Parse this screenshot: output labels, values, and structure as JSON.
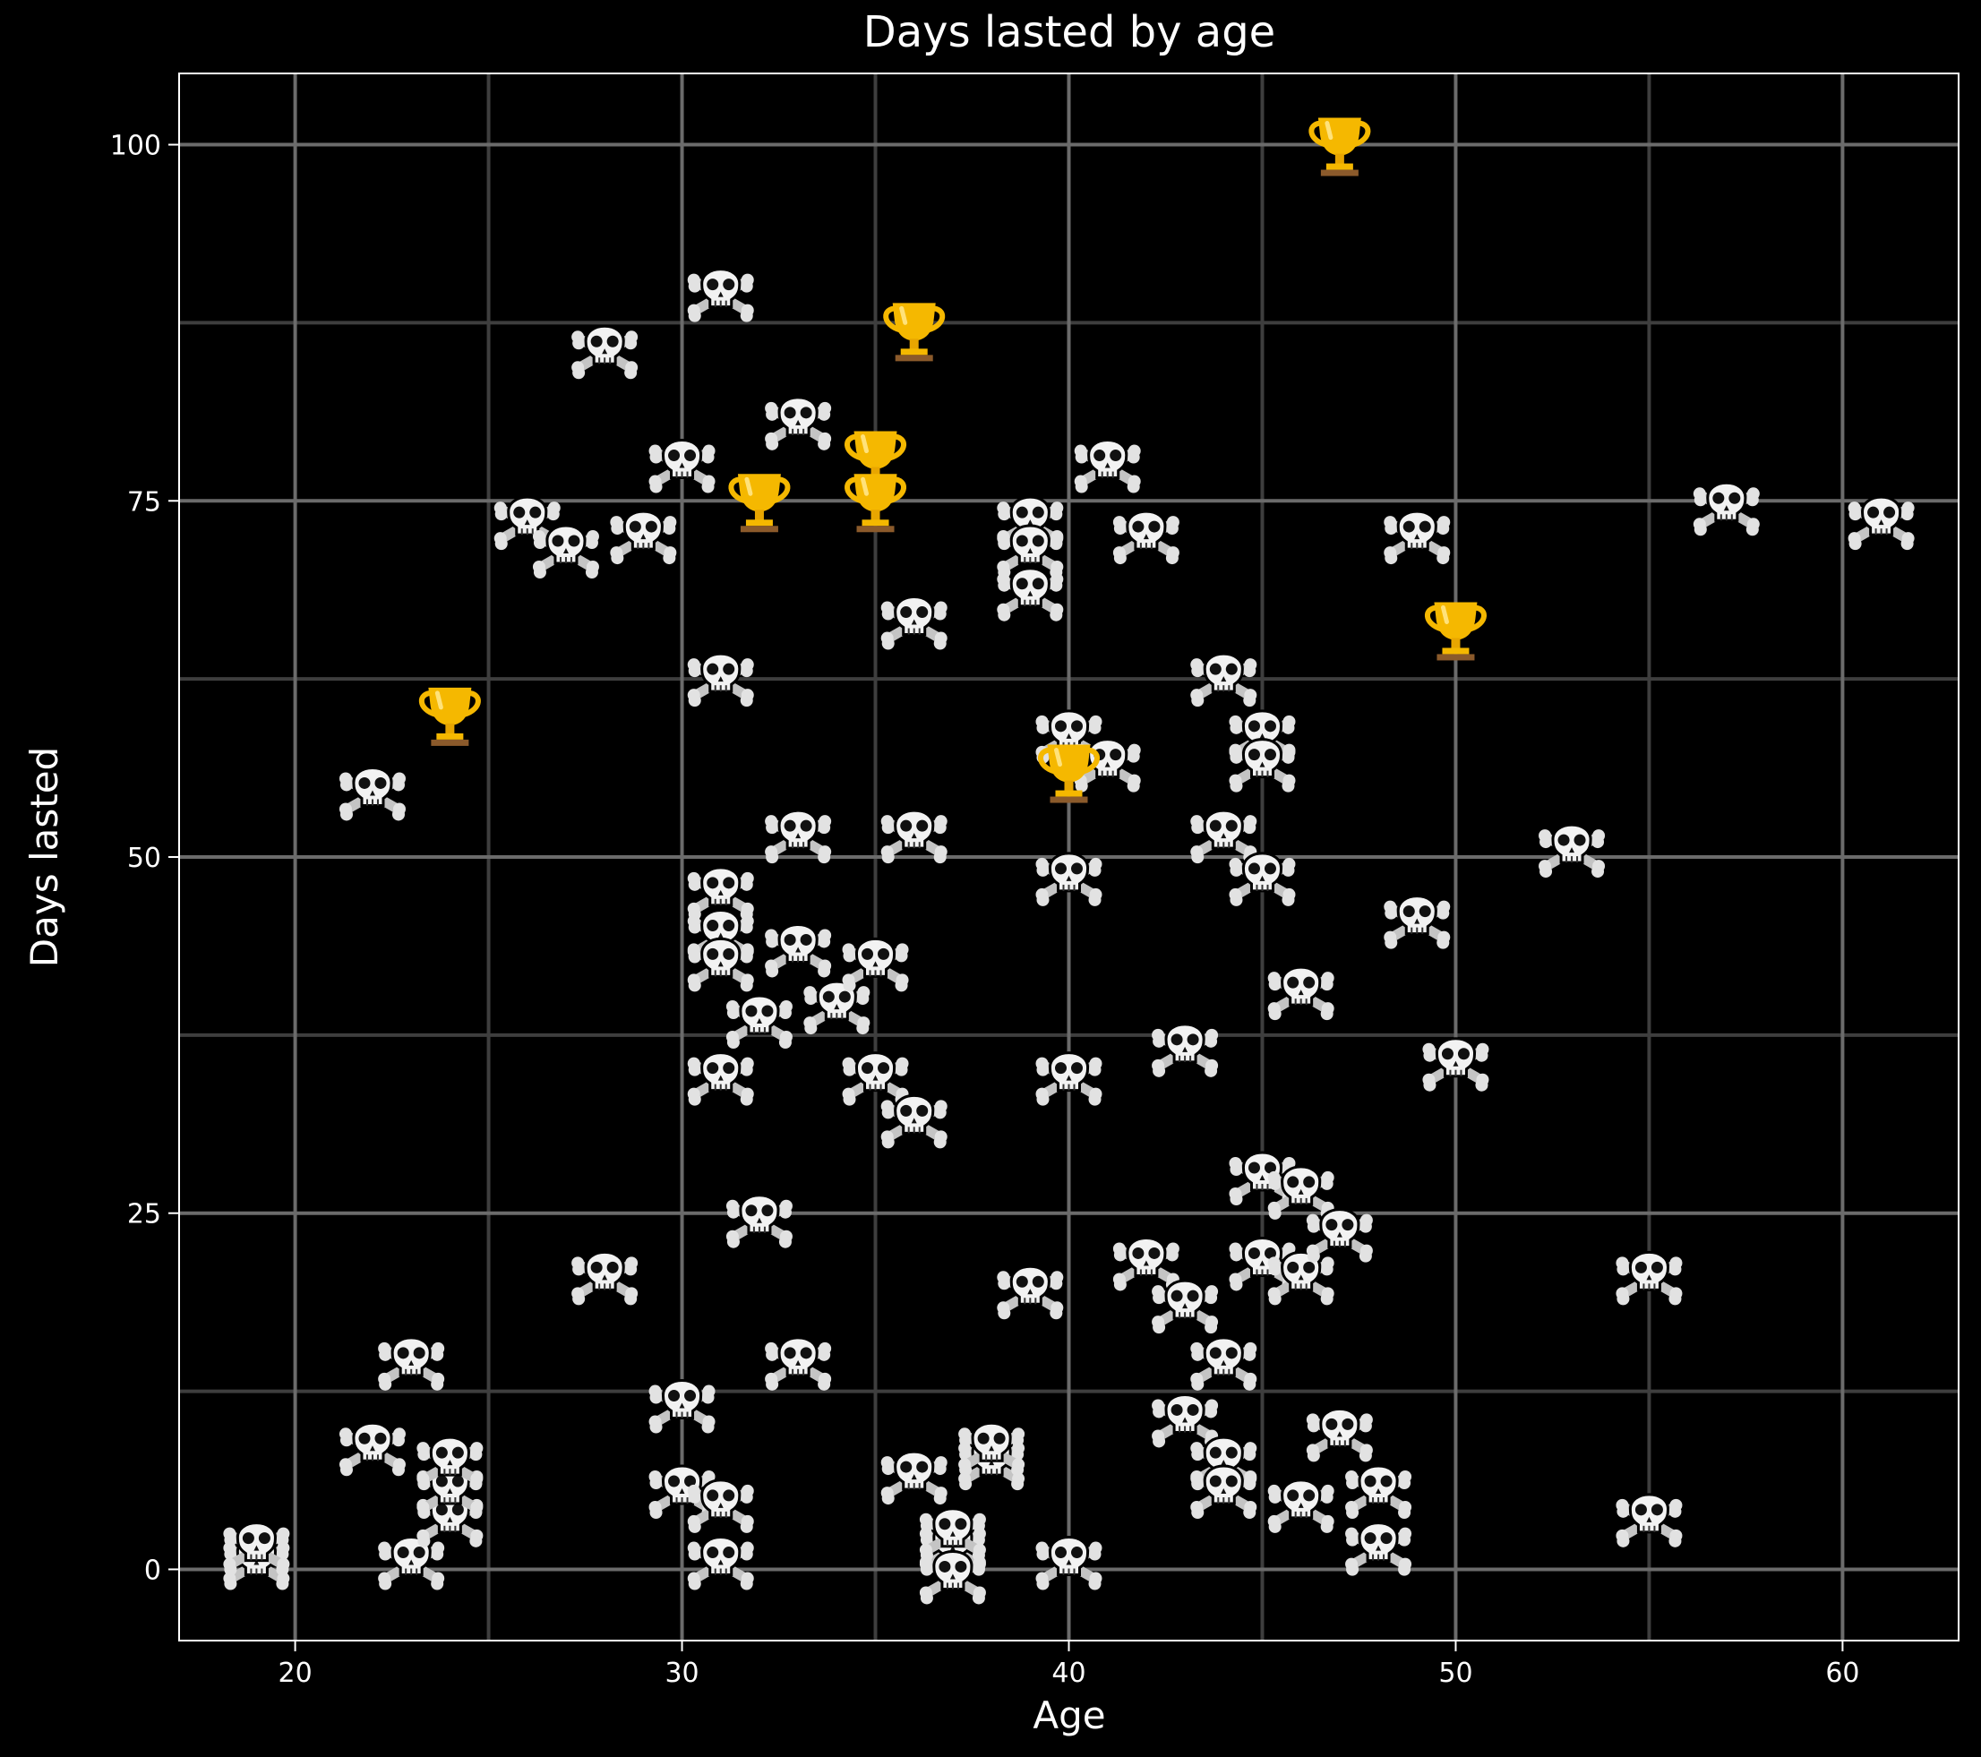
{
  "chart_data": {
    "type": "scatter",
    "title": "Days lasted by age",
    "xlabel": "Age",
    "ylabel": "Days lasted",
    "xlim": [
      17,
      63
    ],
    "ylim": [
      -5,
      105
    ],
    "xticks": [
      20,
      30,
      40,
      50,
      60
    ],
    "yticks": [
      0,
      25,
      50,
      75,
      100
    ],
    "grid": true,
    "background": "#000000",
    "colors": {
      "loser_marker": "#f2f2f2",
      "winner_marker": "#f5b800",
      "trophy_base": "#8b5a2b"
    },
    "series": [
      {
        "icon": "skull-crossbones-icon",
        "points": [
          [
            19,
            1
          ],
          [
            19,
            2
          ],
          [
            22,
            9
          ],
          [
            22,
            55
          ],
          [
            23,
            1
          ],
          [
            23,
            15
          ],
          [
            24,
            4
          ],
          [
            24,
            6
          ],
          [
            24,
            8
          ],
          [
            26,
            74
          ],
          [
            27,
            72
          ],
          [
            28,
            21
          ],
          [
            28,
            86
          ],
          [
            29,
            73
          ],
          [
            30,
            12
          ],
          [
            30,
            6
          ],
          [
            30,
            78
          ],
          [
            31,
            90
          ],
          [
            31,
            63
          ],
          [
            31,
            48
          ],
          [
            31,
            45
          ],
          [
            31,
            43
          ],
          [
            31,
            35
          ],
          [
            31,
            5
          ],
          [
            31,
            1
          ],
          [
            32,
            25
          ],
          [
            32,
            39
          ],
          [
            33,
            81
          ],
          [
            33,
            15
          ],
          [
            33,
            44
          ],
          [
            33,
            52
          ],
          [
            34,
            40
          ],
          [
            35,
            43
          ],
          [
            35,
            35
          ],
          [
            36,
            67
          ],
          [
            36,
            52
          ],
          [
            36,
            32
          ],
          [
            36,
            7
          ],
          [
            37,
            2
          ],
          [
            37,
            0
          ],
          [
            37,
            3
          ],
          [
            38,
            8
          ],
          [
            38,
            9
          ],
          [
            39,
            74
          ],
          [
            39,
            72
          ],
          [
            39,
            69
          ],
          [
            39,
            20
          ],
          [
            40,
            59
          ],
          [
            40,
            49
          ],
          [
            40,
            35
          ],
          [
            40,
            1
          ],
          [
            41,
            57
          ],
          [
            41,
            78
          ],
          [
            42,
            73
          ],
          [
            42,
            22
          ],
          [
            43,
            19
          ],
          [
            43,
            37
          ],
          [
            43,
            11
          ],
          [
            44,
            15
          ],
          [
            44,
            63
          ],
          [
            44,
            52
          ],
          [
            44,
            8
          ],
          [
            44,
            6
          ],
          [
            45,
            59
          ],
          [
            45,
            57
          ],
          [
            45,
            49
          ],
          [
            45,
            28
          ],
          [
            45,
            22
          ],
          [
            46,
            27
          ],
          [
            46,
            21
          ],
          [
            46,
            41
          ],
          [
            46,
            5
          ],
          [
            47,
            24
          ],
          [
            47,
            10
          ],
          [
            48,
            2
          ],
          [
            48,
            6
          ],
          [
            49,
            46
          ],
          [
            49,
            73
          ],
          [
            50,
            36
          ],
          [
            53,
            51
          ],
          [
            55,
            21
          ],
          [
            55,
            4
          ],
          [
            57,
            75
          ],
          [
            61,
            74
          ]
        ]
      },
      {
        "icon": "trophy-icon",
        "points": [
          [
            24,
            60
          ],
          [
            32,
            75
          ],
          [
            35,
            78
          ],
          [
            35,
            75
          ],
          [
            36,
            87
          ],
          [
            40,
            56
          ],
          [
            47,
            100
          ],
          [
            50,
            66
          ]
        ]
      }
    ]
  }
}
